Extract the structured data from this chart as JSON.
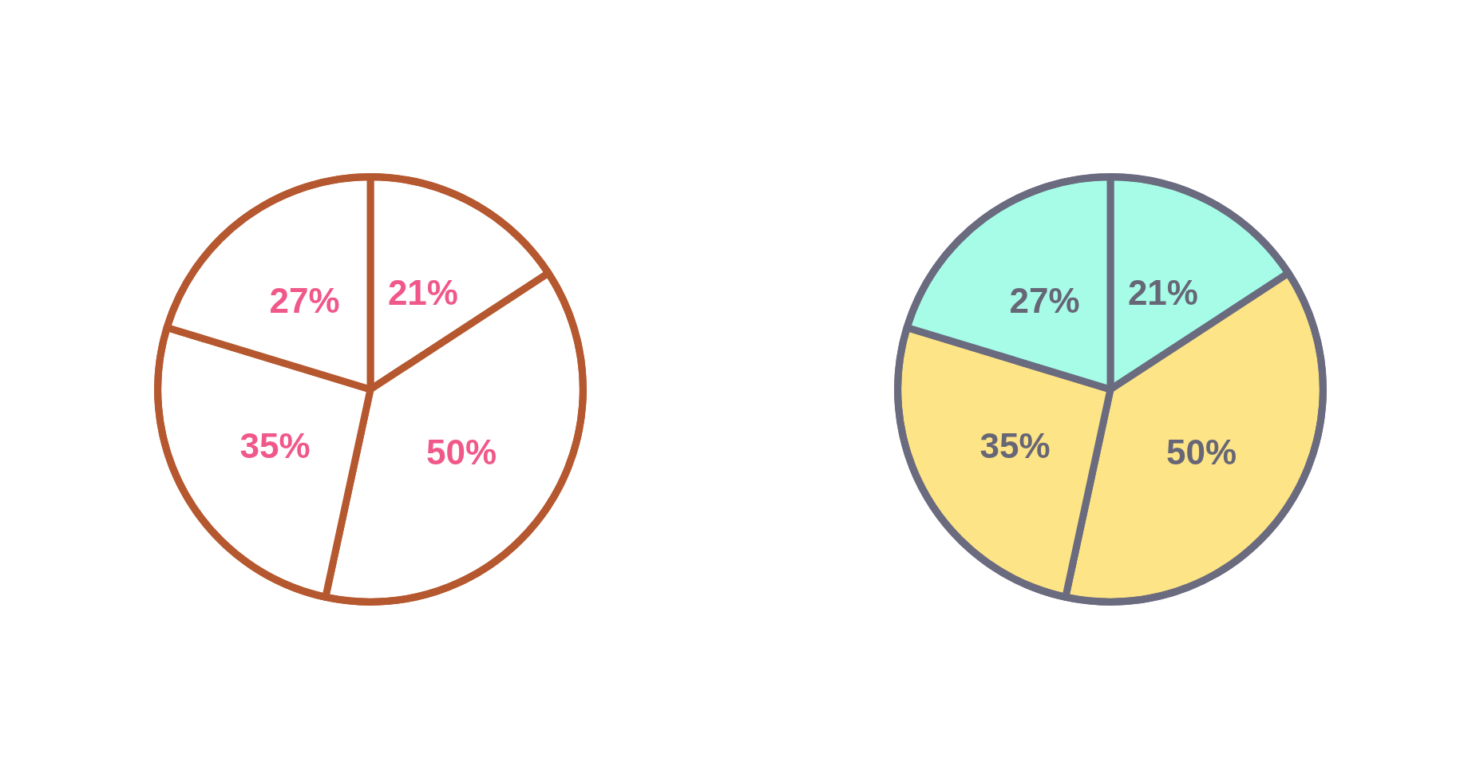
{
  "chart_data": [
    {
      "type": "pie",
      "categories": [
        null,
        null,
        null,
        null
      ],
      "values": [
        21,
        50,
        35,
        27
      ],
      "value_labels": [
        "21%",
        "50%",
        "35%",
        "27%"
      ],
      "colors": [
        "#ffffff",
        "#ffffff",
        "#ffffff",
        "#ffffff"
      ]
    },
    {
      "type": "pie",
      "categories": [
        null,
        null,
        null,
        null
      ],
      "values": [
        21,
        50,
        35,
        27
      ],
      "value_labels": [
        "21%",
        "50%",
        "35%",
        "27%"
      ],
      "colors": [
        "#a6fce6",
        "#fde486",
        "#fde486",
        "#a6fce6"
      ]
    }
  ]
}
